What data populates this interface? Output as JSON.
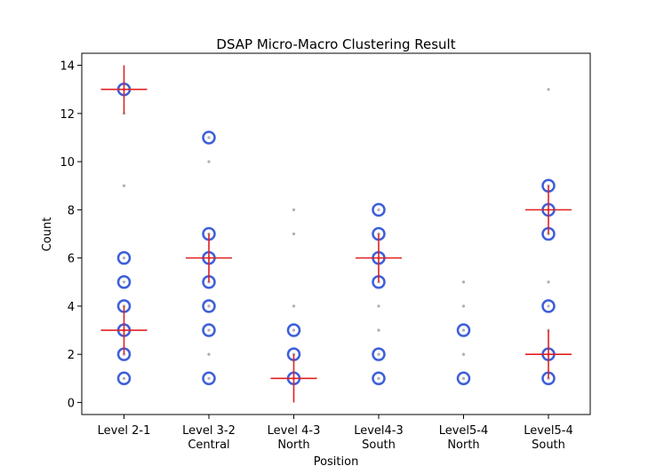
{
  "chart_data": {
    "type": "scatter",
    "title": "DSAP Micro-Macro Clustering Result",
    "xlabel": "Position",
    "ylabel": "Count",
    "ylim": [
      -0.5,
      14.5
    ],
    "yticks": [
      0,
      2,
      4,
      6,
      8,
      10,
      12,
      14
    ],
    "categories": [
      [
        "Level 2-1"
      ],
      [
        "Level 3-2",
        "Central"
      ],
      [
        "Level 4-3",
        "North"
      ],
      [
        "Level4-3",
        "South"
      ],
      [
        "Level5-4",
        "North"
      ],
      [
        "Level5-4",
        "South"
      ]
    ],
    "colors": {
      "points": "#b0b0b0",
      "circles": "#3d5fd9",
      "centers": "#e02020"
    },
    "series": [
      {
        "name": "",
        "kind": "raw-points",
        "values": [
          [
            1,
            3,
            4,
            6,
            9,
            2,
            4,
            5,
            1,
            12,
            13,
            3,
            2
          ],
          [
            1,
            2,
            3,
            4,
            10,
            5,
            6,
            7,
            11,
            6,
            2,
            4
          ],
          [
            1,
            2,
            4,
            7,
            8,
            1,
            3,
            2
          ],
          [
            1,
            2,
            3,
            4,
            5,
            6,
            8,
            7,
            2,
            3,
            1
          ],
          [
            1,
            2,
            3,
            4,
            5,
            1,
            3,
            2
          ],
          [
            1,
            2,
            3,
            4,
            5,
            7,
            8,
            9,
            13,
            1,
            2,
            8
          ]
        ]
      },
      {
        "name": "",
        "kind": "micro-clusters",
        "values": [
          [
            1,
            2,
            3,
            4,
            5,
            6,
            13
          ],
          [
            1,
            3,
            4,
            5,
            6,
            7,
            11
          ],
          [
            1,
            2,
            3
          ],
          [
            1,
            2,
            5,
            6,
            7,
            8
          ],
          [
            1,
            3
          ],
          [
            1,
            2,
            4,
            7,
            8,
            9
          ]
        ]
      },
      {
        "name": "",
        "kind": "macro-clusters",
        "values": [
          [
            {
              "y": 13,
              "err": 1
            },
            {
              "y": 3,
              "err": 1
            }
          ],
          [
            {
              "y": 6,
              "err": 1
            }
          ],
          [
            {
              "y": 1,
              "err": 1
            }
          ],
          [
            {
              "y": 6,
              "err": 1
            }
          ],
          [],
          [
            {
              "y": 8,
              "err": 1
            },
            {
              "y": 2,
              "err": 1
            }
          ]
        ]
      }
    ]
  }
}
